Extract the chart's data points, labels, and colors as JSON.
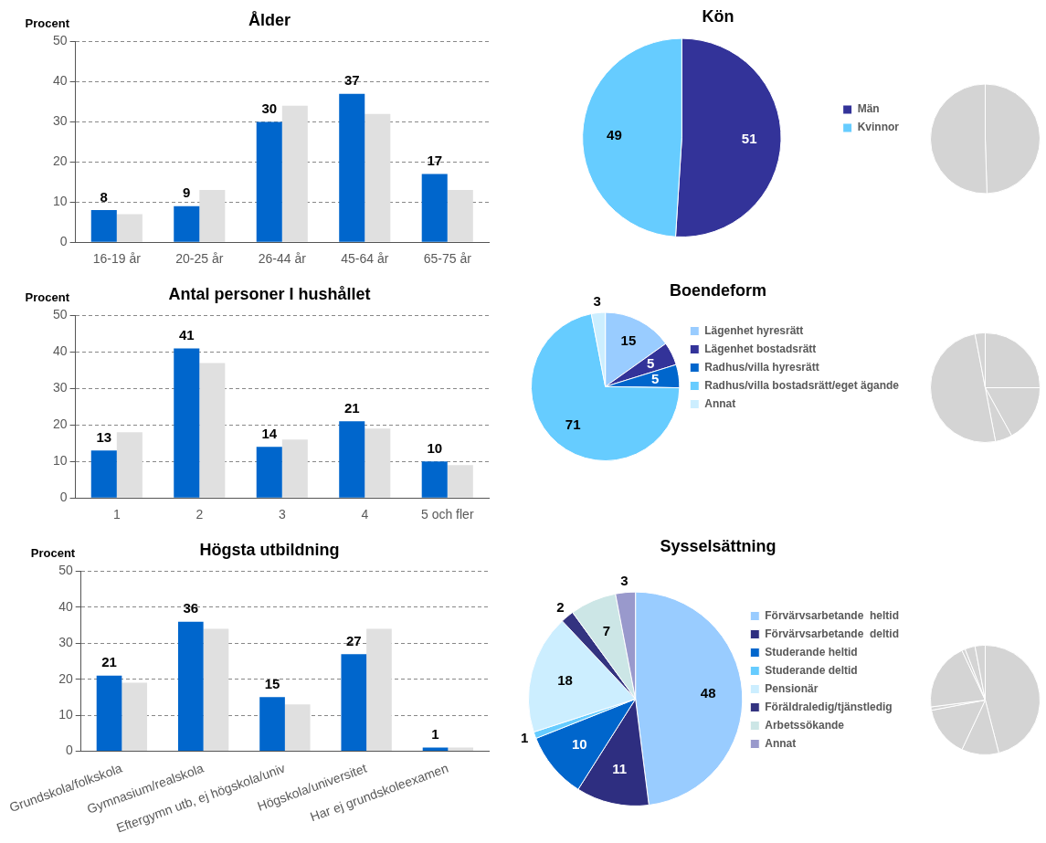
{
  "chart_data": [
    {
      "type": "bar",
      "title": "Ålder",
      "ylabel": "Procent",
      "categories": [
        "16-19 år",
        "20-25 år",
        "26-44 år",
        "45-64 år",
        "65-75 år"
      ],
      "series": [
        {
          "color": "#0066cc",
          "values": [
            8,
            9,
            30,
            37,
            17
          ],
          "value_labels": [
            "8",
            "9",
            "30",
            "37",
            "17"
          ]
        },
        {
          "color": "#e0e0e0",
          "values": [
            7,
            13,
            34,
            32,
            13
          ]
        }
      ],
      "ylim": [
        0,
        50
      ],
      "yticks": [
        0,
        10,
        20,
        30,
        40,
        50
      ],
      "grid": "y"
    },
    {
      "type": "pie",
      "title": "Kön",
      "categories": [
        "Män",
        "Kvinnor"
      ],
      "values": [
        51,
        49
      ],
      "colors": [
        "#333399",
        "#66ccff"
      ],
      "legend": "right",
      "data_labels": true
    },
    {
      "type": "pie",
      "categories": [
        null,
        null
      ],
      "values": [
        49.5,
        50.5
      ],
      "colors": [
        "#d4d4d4",
        "#d4d4d4"
      ]
    },
    {
      "type": "bar",
      "title": "Antal personer I hushållet",
      "ylabel": "Procent",
      "categories": [
        "1",
        "2",
        "3",
        "4",
        "5 och fler"
      ],
      "series": [
        {
          "color": "#0066cc",
          "values": [
            13,
            41,
            14,
            21,
            10
          ],
          "value_labels": [
            "13",
            "41",
            "14",
            "21",
            "10"
          ]
        },
        {
          "color": "#e0e0e0",
          "values": [
            18,
            37,
            16,
            19,
            9
          ]
        }
      ],
      "ylim": [
        0,
        50
      ],
      "yticks": [
        0,
        10,
        20,
        30,
        40,
        50
      ],
      "grid": "y"
    },
    {
      "type": "pie",
      "title": "Boendeform",
      "categories": [
        "Lägenhet hyresrätt",
        "Lägenhet bostadsrätt",
        "Radhus/villa hyresrätt",
        "Radhus/villa bostadsrätt/eget ägande",
        "Annat"
      ],
      "values": [
        15,
        5,
        5,
        71,
        3
      ],
      "colors": [
        "#99ccff",
        "#333399",
        "#0066cc",
        "#66ccff",
        "#cceeff"
      ],
      "legend": "right",
      "data_labels": true
    },
    {
      "type": "pie",
      "categories": [
        null,
        null,
        null,
        null,
        null
      ],
      "values": [
        25,
        17,
        5,
        50,
        3
      ],
      "colors": [
        "#d4d4d4",
        "#d4d4d4",
        "#d4d4d4",
        "#d4d4d4",
        "#d4d4d4"
      ]
    },
    {
      "type": "bar",
      "title": "Högsta utbildning",
      "ylabel": "Procent",
      "categories": [
        "Grundskola/folkskola",
        "Gymnasium/realskola",
        "Eftergymn utb, ej högskola/univ",
        "Högskola/universitet",
        "Har ej grundskoleexamen"
      ],
      "series": [
        {
          "color": "#0066cc",
          "values": [
            21,
            36,
            15,
            27,
            1
          ],
          "value_labels": [
            "21",
            "36",
            "15",
            "27",
            "1"
          ]
        },
        {
          "color": "#e0e0e0",
          "values": [
            19,
            34,
            13,
            34,
            1
          ]
        }
      ],
      "ylim": [
        0,
        50
      ],
      "yticks": [
        0,
        10,
        20,
        30,
        40,
        50
      ],
      "grid": "y"
    },
    {
      "type": "pie",
      "title": "Sysselsättning",
      "categories": [
        "Förvärvsarbetande  heltid",
        "Förvärvsarbetande  deltid",
        "Studerande heltid",
        "Studerande deltid",
        "Pensionär",
        "Föräldraledig/tjänstledig",
        "Arbetssökande",
        "Annat"
      ],
      "values": [
        48,
        11,
        10,
        1,
        18,
        2,
        7,
        3
      ],
      "colors": [
        "#99ccff",
        "#2e2e80",
        "#0066cc",
        "#66ccff",
        "#cceeff",
        "#333380",
        "#cce6e6",
        "#9999cc"
      ],
      "legend": "right",
      "data_labels": true
    },
    {
      "type": "pie",
      "categories": [
        null,
        null,
        null,
        null,
        null,
        null,
        null,
        null
      ],
      "values": [
        46,
        11,
        15,
        1,
        20,
        1,
        3,
        3
      ],
      "colors": [
        "#d4d4d4",
        "#d4d4d4",
        "#d4d4d4",
        "#d4d4d4",
        "#d4d4d4",
        "#d4d4d4",
        "#d4d4d4",
        "#d4d4d4"
      ]
    }
  ]
}
